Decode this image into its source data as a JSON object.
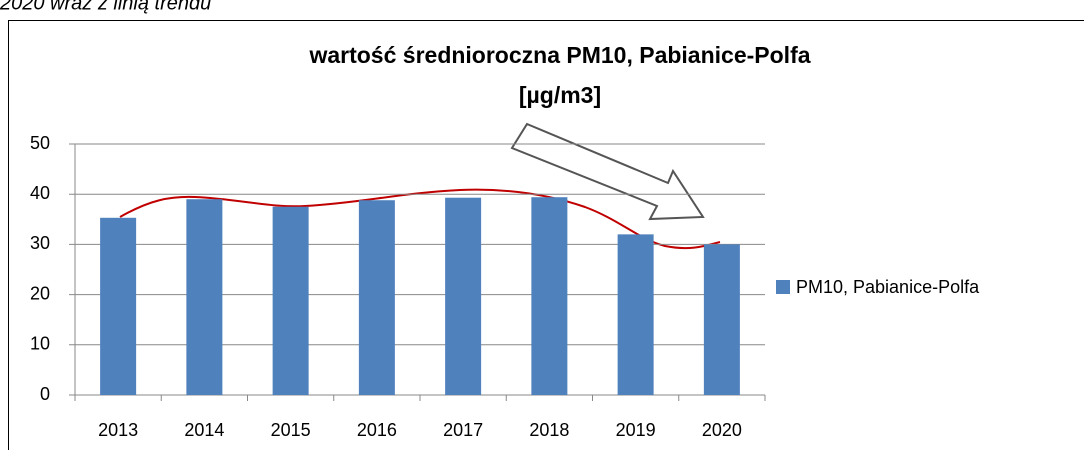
{
  "caption": "2020 wraz z linią trendu",
  "chart_data": {
    "type": "bar",
    "title": [
      "wartość średnioroczna PM10, Pabianice-Polfa",
      "[µg/m3]"
    ],
    "categories": [
      "2013",
      "2014",
      "2015",
      "2016",
      "2017",
      "2018",
      "2019",
      "2020"
    ],
    "series": [
      {
        "name": "PM10, Pabianice-Polfa",
        "color": "#4f81bd",
        "values": [
          35.3,
          39,
          37.5,
          38.8,
          39.3,
          39.4,
          32,
          30
        ]
      }
    ],
    "ylim": [
      0,
      50
    ],
    "yticks": [
      0,
      10,
      20,
      30,
      40,
      50
    ],
    "grid": true,
    "legend": "right"
  }
}
